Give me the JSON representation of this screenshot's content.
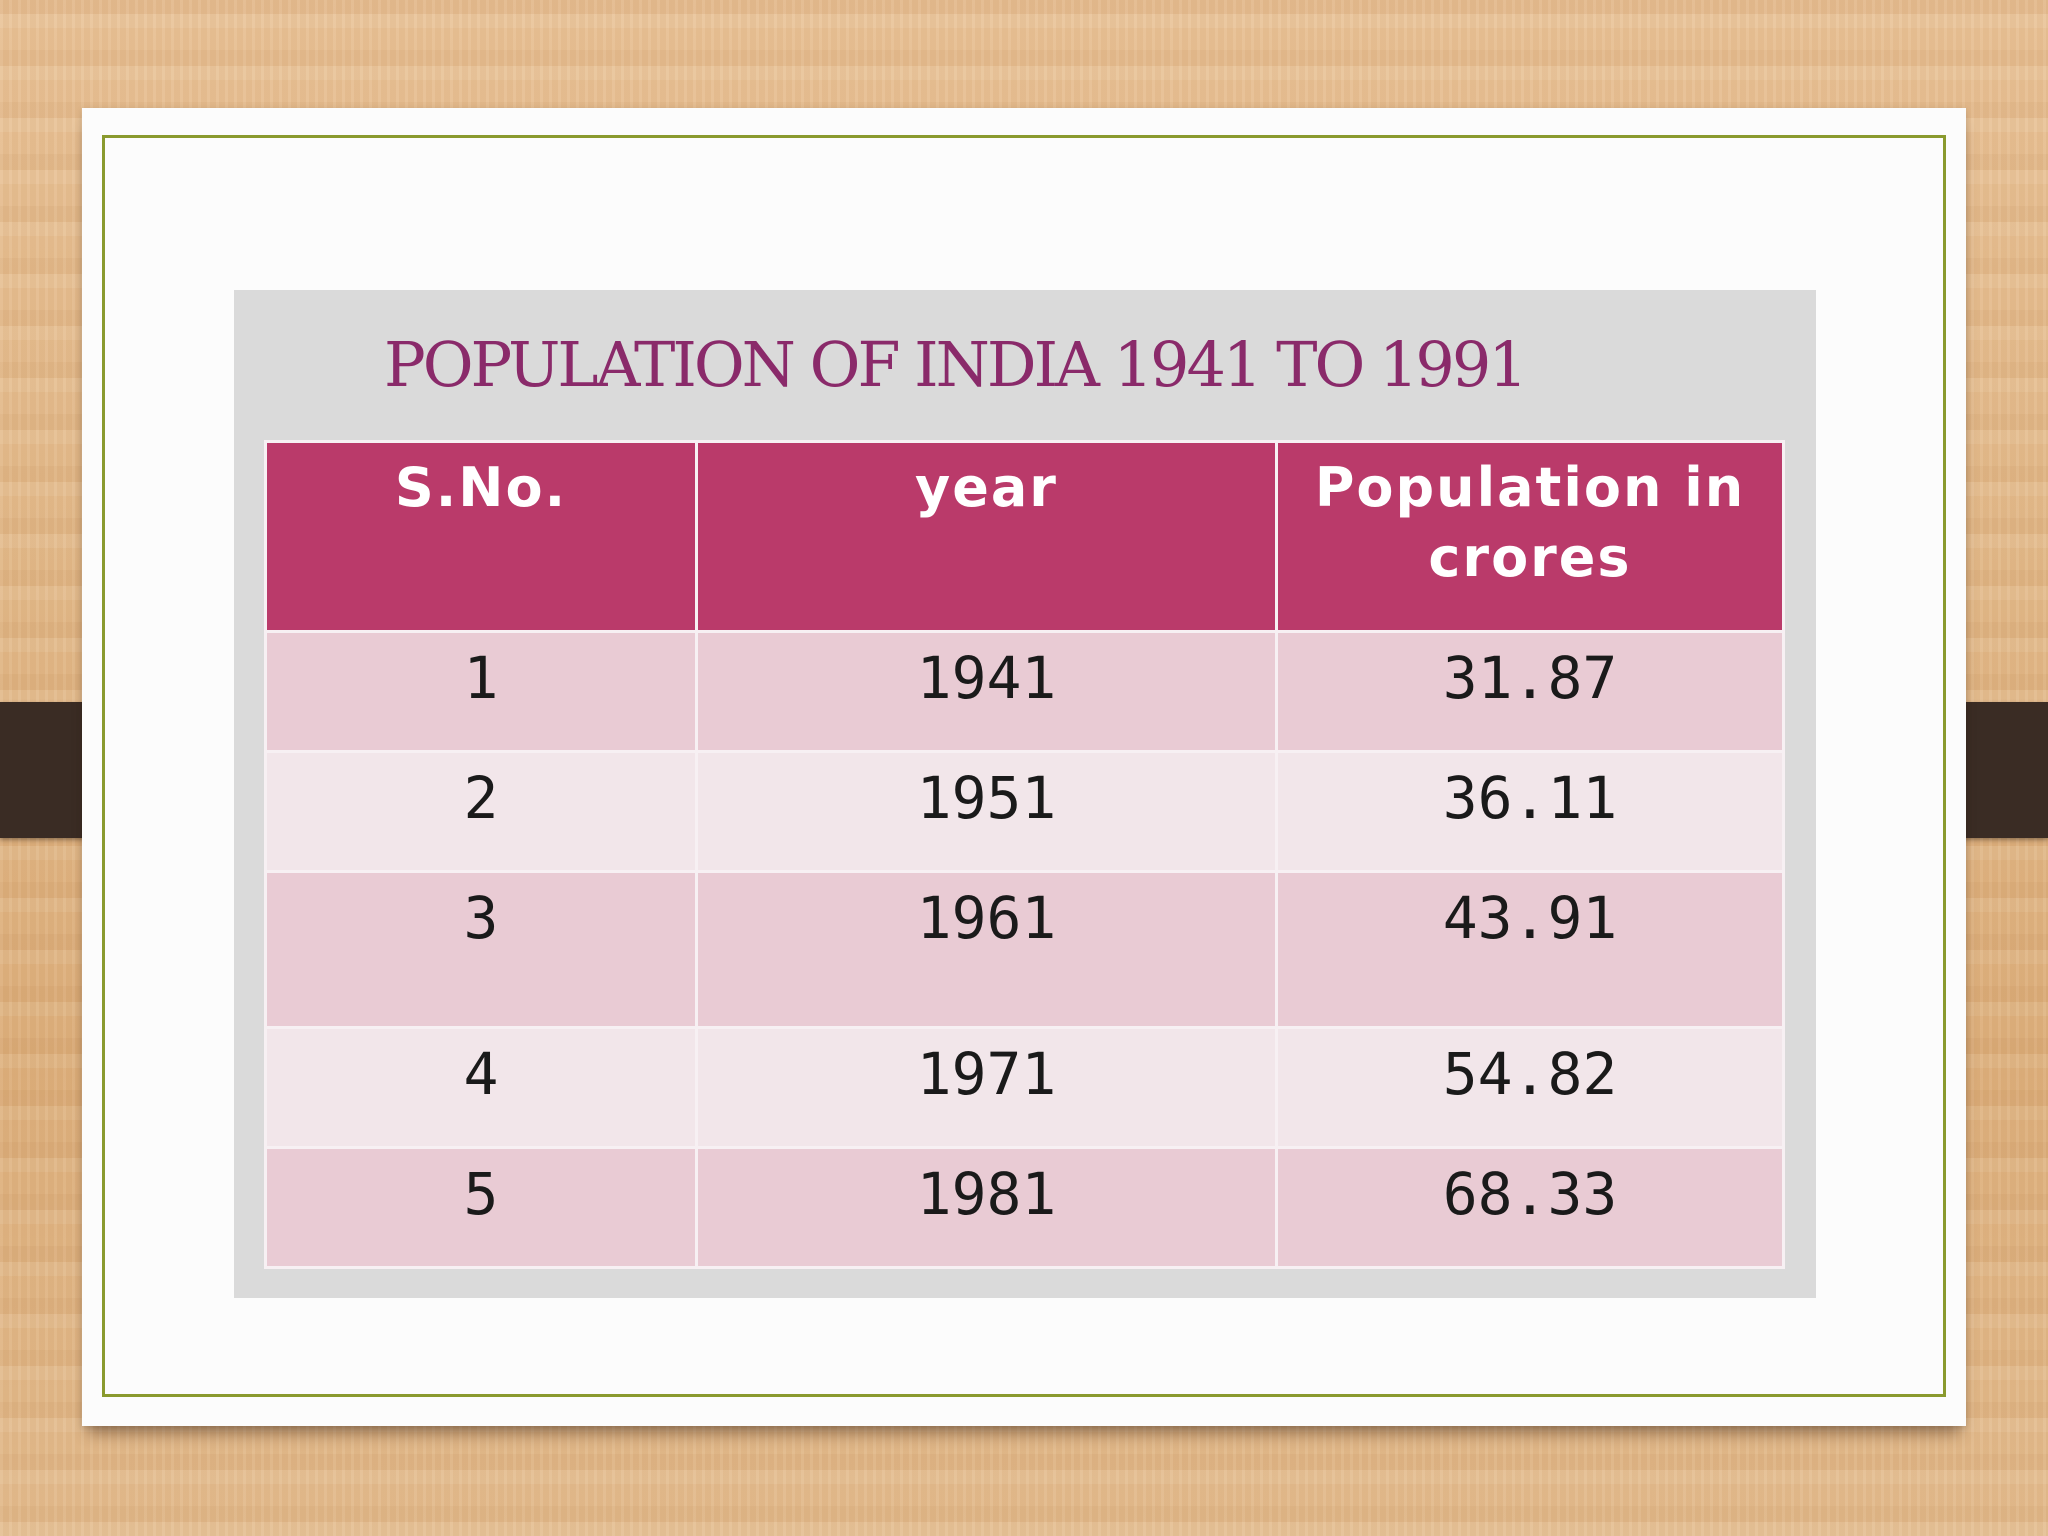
{
  "title": "POPULATION OF INDIA 1941 TO 1991",
  "table": {
    "headers": [
      "S.No.",
      "year",
      "Population in crores"
    ],
    "rows": [
      [
        "1",
        "1941",
        "31.87"
      ],
      [
        "2",
        "1951",
        "36.11"
      ],
      [
        "3",
        "1961",
        "43.91"
      ],
      [
        "4",
        "1971",
        "54.82"
      ],
      [
        "5",
        "1981",
        "68.33"
      ]
    ]
  },
  "colors": {
    "header_bg": "#ba3a6a",
    "row_odd": "#e9cbd4",
    "row_even": "#f2e6ea",
    "title": "#8a2a6a",
    "frame": "#8a9a2e"
  }
}
